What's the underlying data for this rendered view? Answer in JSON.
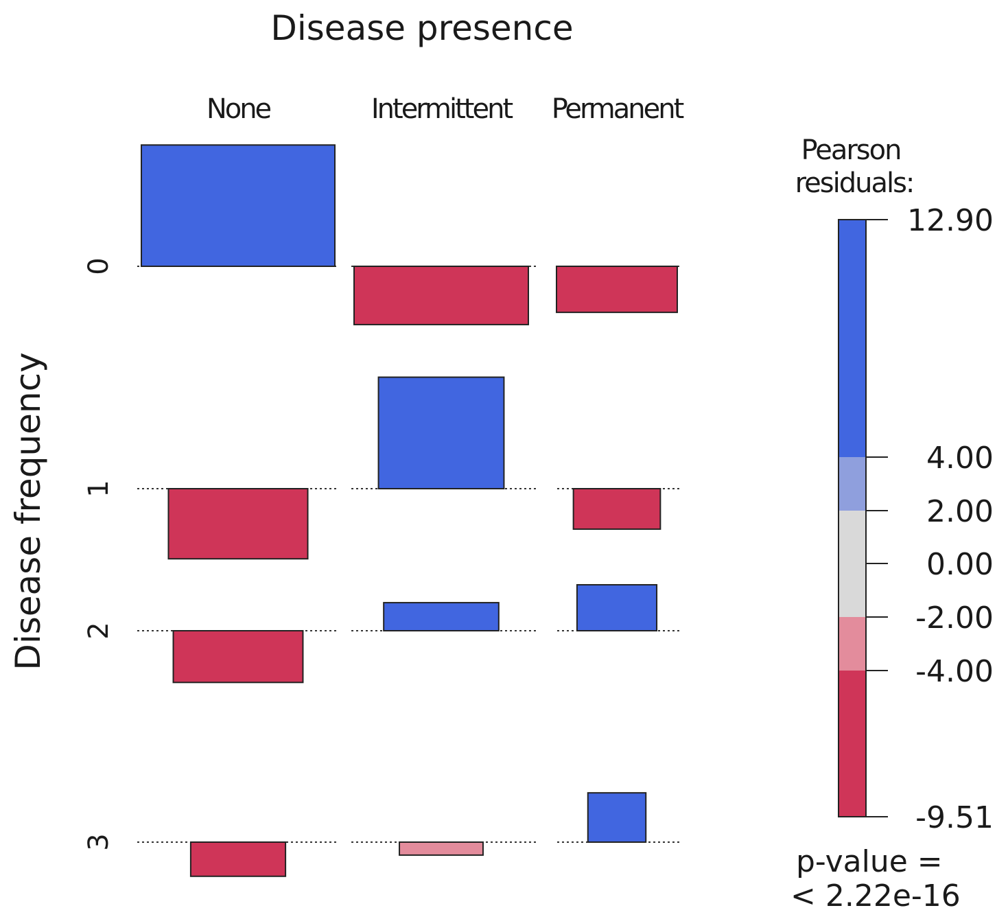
{
  "chart_data": {
    "type": "association",
    "title": "Disease presence",
    "column_header": "Disease presence",
    "row_header": "Disease frequency",
    "columns": [
      "None",
      "Intermittent",
      "Permanent"
    ],
    "rows": [
      "0",
      "1",
      "2",
      "3"
    ],
    "residuals": [
      [
        12.9,
        -6.2,
        -4.9
      ],
      [
        -7.8,
        12.4,
        -4.5
      ],
      [
        -8.1,
        4.4,
        7.2
      ],
      [
        -7.9,
        -3.0,
        11.4
      ]
    ],
    "legend": {
      "title_line1": "Pearson",
      "title_line2": "residuals:",
      "breaks": [
        12.9,
        4.0,
        2.0,
        0.0,
        -2.0,
        -4.0,
        -9.51
      ],
      "tick_labels": [
        "12.90",
        "4.00",
        "2.00",
        "0.00",
        "-2.00",
        "-4.00",
        "-9.51"
      ],
      "colors": [
        "#4166e0",
        "#8f9fdd",
        "#d9d9d9",
        "#e38c9c",
        "#cf3558"
      ],
      "pvalue_line1": "p-value =",
      "pvalue_line2": "< 2.22e-16"
    }
  }
}
